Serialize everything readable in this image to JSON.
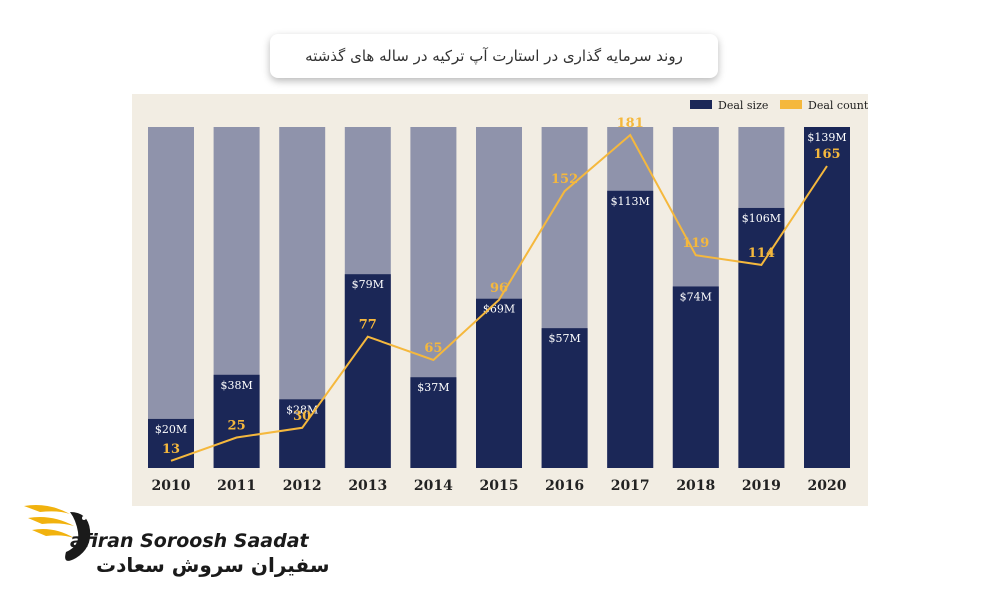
{
  "title": "روند سرمایه گذاری در استارت آپ ترکیه در ساله های گذشته",
  "logo": {
    "name_en": "afiran Soroosh Saadat",
    "name_fa": "سفیران سروش سعادت"
  },
  "colors": {
    "bar_fill": "#1b2757",
    "bar_background": "#8f93ab",
    "line": "#f5b83d",
    "panel": "#f2ede3",
    "logo_gold": "#f1b20e"
  },
  "chart_data": {
    "type": "bar",
    "categories": [
      "2010",
      "2011",
      "2012",
      "2013",
      "2014",
      "2015",
      "2016",
      "2017",
      "2018",
      "2019",
      "2020"
    ],
    "series": [
      {
        "name": "Deal size",
        "type": "bar",
        "values": [
          20,
          38,
          28,
          79,
          37,
          69,
          57,
          113,
          74,
          106,
          139
        ],
        "labels": [
          "$20M",
          "$38M",
          "$28M",
          "$79M",
          "$37M",
          "$69M",
          "$57M",
          "$113M",
          "$74M",
          "$106M",
          "$139M"
        ]
      },
      {
        "name": "Deal count",
        "type": "line",
        "values": [
          13,
          25,
          30,
          77,
          65,
          96,
          152,
          181,
          119,
          114,
          165
        ],
        "labels": [
          "13",
          "25",
          "30",
          "77",
          "65",
          "96",
          "152",
          "181",
          "119",
          "114",
          "165"
        ]
      }
    ],
    "legend_position": "top-right",
    "grid": false
  }
}
